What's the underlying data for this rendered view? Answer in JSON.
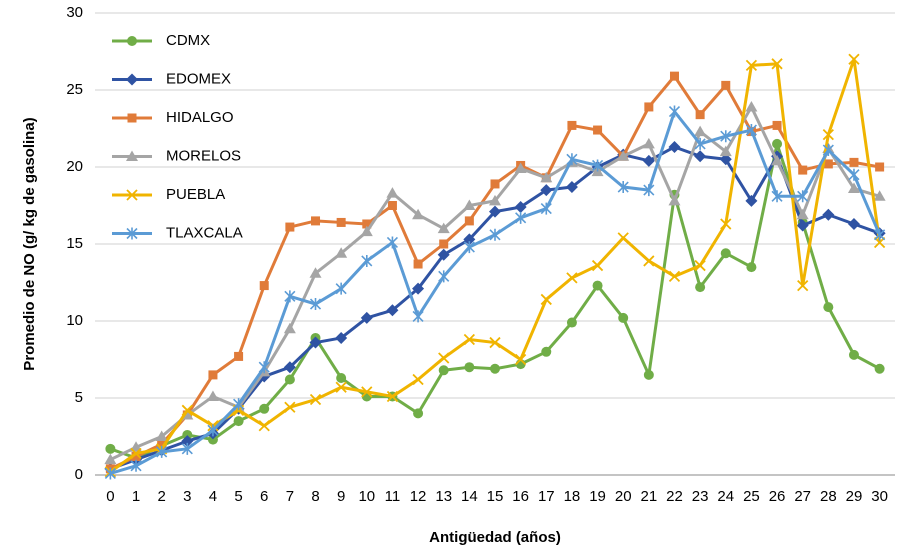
{
  "chart_data": {
    "type": "line",
    "xlabel": "Antigüedad (años)",
    "ylabel": "Promedio de NO (g/ kg de gasolina)",
    "x": [
      0,
      1,
      2,
      3,
      4,
      5,
      6,
      7,
      8,
      9,
      10,
      11,
      12,
      13,
      14,
      15,
      16,
      17,
      18,
      19,
      20,
      21,
      22,
      23,
      24,
      25,
      26,
      27,
      28,
      29,
      30
    ],
    "xlim": [
      -0.6,
      30.6
    ],
    "xticks": [
      0,
      1,
      2,
      3,
      4,
      5,
      6,
      7,
      8,
      9,
      10,
      11,
      12,
      13,
      14,
      15,
      16,
      17,
      18,
      19,
      20,
      21,
      22,
      23,
      24,
      25,
      26,
      27,
      28,
      29,
      30
    ],
    "ylim": [
      0,
      30
    ],
    "yticks": [
      0,
      5,
      10,
      15,
      20,
      25,
      30
    ],
    "grid": true,
    "legend": "upper left",
    "series": [
      {
        "name": "CDMX",
        "color": "#70ad47",
        "marker": "circle",
        "values": [
          1.7,
          1.1,
          1.9,
          2.6,
          2.3,
          3.5,
          4.3,
          6.2,
          8.9,
          6.3,
          5.1,
          5.1,
          4.0,
          6.8,
          7.0,
          6.9,
          7.2,
          8.0,
          9.9,
          12.3,
          10.2,
          6.5,
          18.2,
          12.2,
          14.4,
          13.5,
          21.5,
          16.4,
          10.9,
          7.8,
          6.9
        ]
      },
      {
        "name": "EDOMEX",
        "color": "#2f53a3",
        "marker": "diamond",
        "values": [
          0.4,
          1.0,
          1.6,
          2.2,
          2.7,
          4.3,
          6.4,
          7.0,
          8.6,
          8.9,
          10.2,
          10.7,
          12.1,
          14.3,
          15.3,
          17.1,
          17.4,
          18.5,
          18.7,
          20.0,
          20.8,
          20.4,
          21.3,
          20.7,
          20.5,
          17.8,
          20.7,
          16.2,
          16.9,
          16.3,
          15.7
        ]
      },
      {
        "name": "HIDALGO",
        "color": "#e07b39",
        "marker": "square",
        "values": [
          0.4,
          1.2,
          2.0,
          3.9,
          6.5,
          7.7,
          12.3,
          16.1,
          16.5,
          16.4,
          16.3,
          17.5,
          13.7,
          15.0,
          16.5,
          18.9,
          20.1,
          19.3,
          22.7,
          22.4,
          20.7,
          23.9,
          25.9,
          23.4,
          25.3,
          22.3,
          22.7,
          19.8,
          20.2,
          20.3,
          20.0
        ]
      },
      {
        "name": "MORELOS",
        "color": "#a5a5a5",
        "marker": "triangle",
        "values": [
          1.0,
          1.8,
          2.5,
          3.9,
          5.1,
          4.4,
          6.7,
          9.5,
          13.1,
          14.4,
          15.8,
          18.3,
          16.9,
          16.0,
          17.5,
          17.8,
          19.9,
          19.3,
          20.3,
          19.7,
          20.7,
          21.5,
          17.8,
          22.3,
          21.0,
          23.9,
          20.4,
          16.9,
          21.2,
          18.6,
          18.1
        ]
      },
      {
        "name": "PUEBLA",
        "color": "#f0b400",
        "marker": "x",
        "values": [
          0.2,
          1.4,
          1.7,
          4.2,
          3.2,
          4.2,
          3.2,
          4.4,
          4.9,
          5.7,
          5.4,
          5.1,
          6.2,
          7.6,
          8.8,
          8.6,
          7.5,
          11.4,
          12.8,
          13.6,
          15.4,
          13.9,
          12.9,
          13.6,
          16.3,
          26.6,
          26.7,
          12.3,
          22.1,
          27.0,
          15.1
        ]
      },
      {
        "name": "TLAXCALA",
        "color": "#5b9bd5",
        "marker": "star",
        "values": [
          0.1,
          0.6,
          1.5,
          1.7,
          2.9,
          4.6,
          7.0,
          11.6,
          11.1,
          12.1,
          13.9,
          15.1,
          10.3,
          12.9,
          14.8,
          15.6,
          16.7,
          17.3,
          20.5,
          20.1,
          18.7,
          18.5,
          23.6,
          21.5,
          22.0,
          22.4,
          18.1,
          18.1,
          21.1,
          19.5,
          15.6
        ]
      }
    ]
  }
}
